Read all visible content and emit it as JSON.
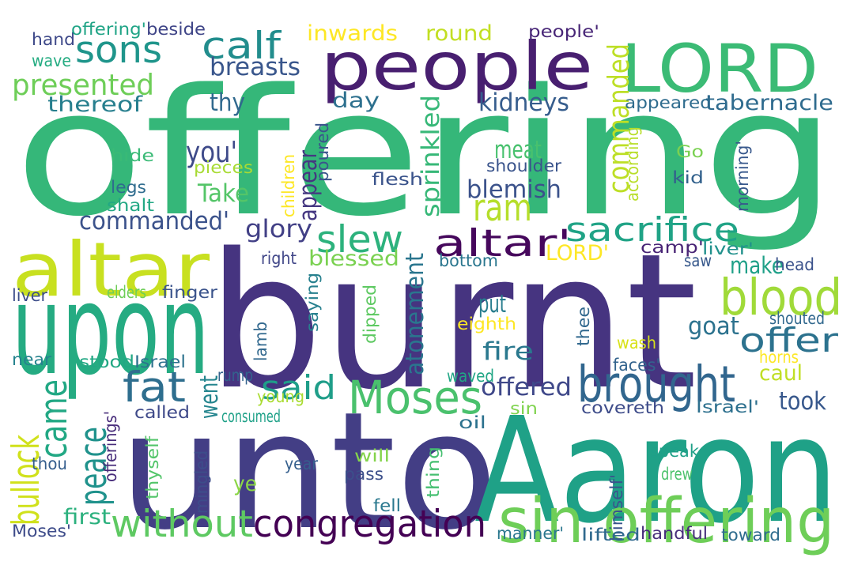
{
  "cloud": {
    "words": [
      {
        "text": "offering",
        "color": "#35b779"
      },
      {
        "text": "burnt",
        "color": "#463480"
      },
      {
        "text": "unto",
        "color": "#433e85"
      },
      {
        "text": "Aaron",
        "color": "#1fa187"
      },
      {
        "text": "upon",
        "color": "#25ab82"
      },
      {
        "text": "people",
        "color": "#481f70"
      },
      {
        "text": "LORD",
        "color": "#3bbb75"
      },
      {
        "text": "altar",
        "color": "#c8e020"
      },
      {
        "text": "sin offering",
        "color": "#6ece58"
      },
      {
        "text": "Moses",
        "color": "#4ac16d"
      },
      {
        "text": "brought",
        "color": "#31668e"
      },
      {
        "text": "congregation",
        "color": "#440154"
      },
      {
        "text": "blood",
        "color": "#a0da39"
      },
      {
        "text": "altar'",
        "color": "#46085c"
      },
      {
        "text": "sacrifice",
        "color": "#20a386"
      },
      {
        "text": "slew",
        "color": "#2db27d"
      },
      {
        "text": "without",
        "color": "#5ec962"
      },
      {
        "text": "sons",
        "color": "#1f958b"
      },
      {
        "text": "fat",
        "color": "#2e6e8e"
      },
      {
        "text": "came",
        "color": "#22a884"
      },
      {
        "text": "peace",
        "color": "#20928c"
      },
      {
        "text": "bullock",
        "color": "#d0e11c"
      },
      {
        "text": "calf",
        "color": "#228d8d"
      },
      {
        "text": "presented",
        "color": "#6ece58"
      },
      {
        "text": "ram",
        "color": "#b5de2b"
      },
      {
        "text": "said",
        "color": "#1f9e89"
      },
      {
        "text": "offer",
        "color": "#2c728e"
      },
      {
        "text": "commanded",
        "color": "#bddf26"
      },
      {
        "text": "commanded'",
        "color": "#3b528b"
      },
      {
        "text": "breasts",
        "color": "#39568c"
      },
      {
        "text": "inwards",
        "color": "#fde725"
      },
      {
        "text": "round",
        "color": "#c2df23"
      },
      {
        "text": "thereof",
        "color": "#277f8e"
      },
      {
        "text": "thy",
        "color": "#30698e"
      },
      {
        "text": "day",
        "color": "#2d708e"
      },
      {
        "text": "kidneys",
        "color": "#365d8d"
      },
      {
        "text": "you'",
        "color": "#3e4a89"
      },
      {
        "text": "Take",
        "color": "#54c568"
      },
      {
        "text": "glory",
        "color": "#424086"
      },
      {
        "text": "meat",
        "color": "#48c16e"
      },
      {
        "text": "blemish",
        "color": "#3b528b"
      },
      {
        "text": "appear",
        "color": "#453781"
      },
      {
        "text": "sprinkled",
        "color": "#37b878"
      },
      {
        "text": "blessed",
        "color": "#7ad151"
      },
      {
        "text": "LORD'",
        "color": "#fde725"
      },
      {
        "text": "make",
        "color": "#1fa088"
      },
      {
        "text": "atonement",
        "color": "#2a768e"
      },
      {
        "text": "put",
        "color": "#287d8e"
      },
      {
        "text": "goat",
        "color": "#2c728e"
      },
      {
        "text": "fire",
        "color": "#2a788e"
      },
      {
        "text": "offered",
        "color": "#3f4889"
      },
      {
        "text": "went",
        "color": "#25858e"
      },
      {
        "text": "caul",
        "color": "#c0df25"
      },
      {
        "text": "took",
        "color": "#38588c"
      },
      {
        "text": "appeared",
        "color": "#2f6c8e"
      },
      {
        "text": "tabernacle",
        "color": "#2f6b8e"
      },
      {
        "text": "hand",
        "color": "#3e4989"
      },
      {
        "text": "offering'",
        "color": "#20a486"
      },
      {
        "text": "beside",
        "color": "#404688"
      },
      {
        "text": "people'",
        "color": "#482677"
      },
      {
        "text": "wave",
        "color": "#25ac82"
      },
      {
        "text": "hide",
        "color": "#3aba76"
      },
      {
        "text": "pieces",
        "color": "#a8db34"
      },
      {
        "text": "legs",
        "color": "#2f6c8e"
      },
      {
        "text": "shalt",
        "color": "#22a884"
      },
      {
        "text": "poured",
        "color": "#3a548c"
      },
      {
        "text": "children",
        "color": "#fde725"
      },
      {
        "text": "flesh",
        "color": "#3a538b"
      },
      {
        "text": "shoulder",
        "color": "#3a548c"
      },
      {
        "text": "according",
        "color": "#b8de29"
      },
      {
        "text": "Go",
        "color": "#7ad151"
      },
      {
        "text": "kid",
        "color": "#33628d"
      },
      {
        "text": "morning'",
        "color": "#38588c"
      },
      {
        "text": "camp'",
        "color": "#482475"
      },
      {
        "text": "liver'",
        "color": "#21918c"
      },
      {
        "text": "right",
        "color": "#404688"
      },
      {
        "text": "bottom",
        "color": "#2a768e"
      },
      {
        "text": "saw",
        "color": "#38598c"
      },
      {
        "text": "head",
        "color": "#3b528b"
      },
      {
        "text": "liver",
        "color": "#3d4e8a"
      },
      {
        "text": "elders",
        "color": "#6ece58"
      },
      {
        "text": "finger",
        "color": "#3a538b"
      },
      {
        "text": "lamb",
        "color": "#31688e"
      },
      {
        "text": "saying",
        "color": "#27808e"
      },
      {
        "text": "dipped",
        "color": "#5ec962"
      },
      {
        "text": "eighth",
        "color": "#fde725"
      },
      {
        "text": "thee",
        "color": "#31688e"
      },
      {
        "text": "shouted",
        "color": "#31688e"
      },
      {
        "text": "wash",
        "color": "#d8e219"
      },
      {
        "text": "horns",
        "color": "#fde725"
      },
      {
        "text": "near",
        "color": "#25838e"
      },
      {
        "text": "stood",
        "color": "#22a884"
      },
      {
        "text": "Israel",
        "color": "#2c728e"
      },
      {
        "text": "rump",
        "color": "#33638d"
      },
      {
        "text": "waved",
        "color": "#21a685"
      },
      {
        "text": "faces'",
        "color": "#33638d"
      },
      {
        "text": "young",
        "color": "#aadc32"
      },
      {
        "text": "offerings'",
        "color": "#472c7a"
      },
      {
        "text": "called",
        "color": "#3e4989"
      },
      {
        "text": "consumed",
        "color": "#1fa188"
      },
      {
        "text": "sin",
        "color": "#7fd34e"
      },
      {
        "text": "oil",
        "color": "#2c728e"
      },
      {
        "text": "covereth",
        "color": "#3e4c8a"
      },
      {
        "text": "Israel'",
        "color": "#2d708e"
      },
      {
        "text": "thyself",
        "color": "#52c569"
      },
      {
        "text": "mingled",
        "color": "#3d4d8a"
      },
      {
        "text": "will",
        "color": "#84d44b"
      },
      {
        "text": "thing",
        "color": "#45bf70"
      },
      {
        "text": "himself'",
        "color": "#3a548c"
      },
      {
        "text": "speak",
        "color": "#1fa088"
      },
      {
        "text": "drew",
        "color": "#4cc26c"
      },
      {
        "text": "year",
        "color": "#355f8d"
      },
      {
        "text": "ye",
        "color": "#8bd646"
      },
      {
        "text": "thou",
        "color": "#355e8d"
      },
      {
        "text": "pass",
        "color": "#3c4f8a"
      },
      {
        "text": "first",
        "color": "#2cb17e"
      },
      {
        "text": "fell",
        "color": "#2a788e"
      },
      {
        "text": "Moses'",
        "color": "#3e4c8a"
      },
      {
        "text": "manner'",
        "color": "#2a778e"
      },
      {
        "text": "lifted",
        "color": "#30698e"
      },
      {
        "text": "handful",
        "color": "#472d7b"
      },
      {
        "text": "toward",
        "color": "#2f6c8e"
      }
    ]
  }
}
